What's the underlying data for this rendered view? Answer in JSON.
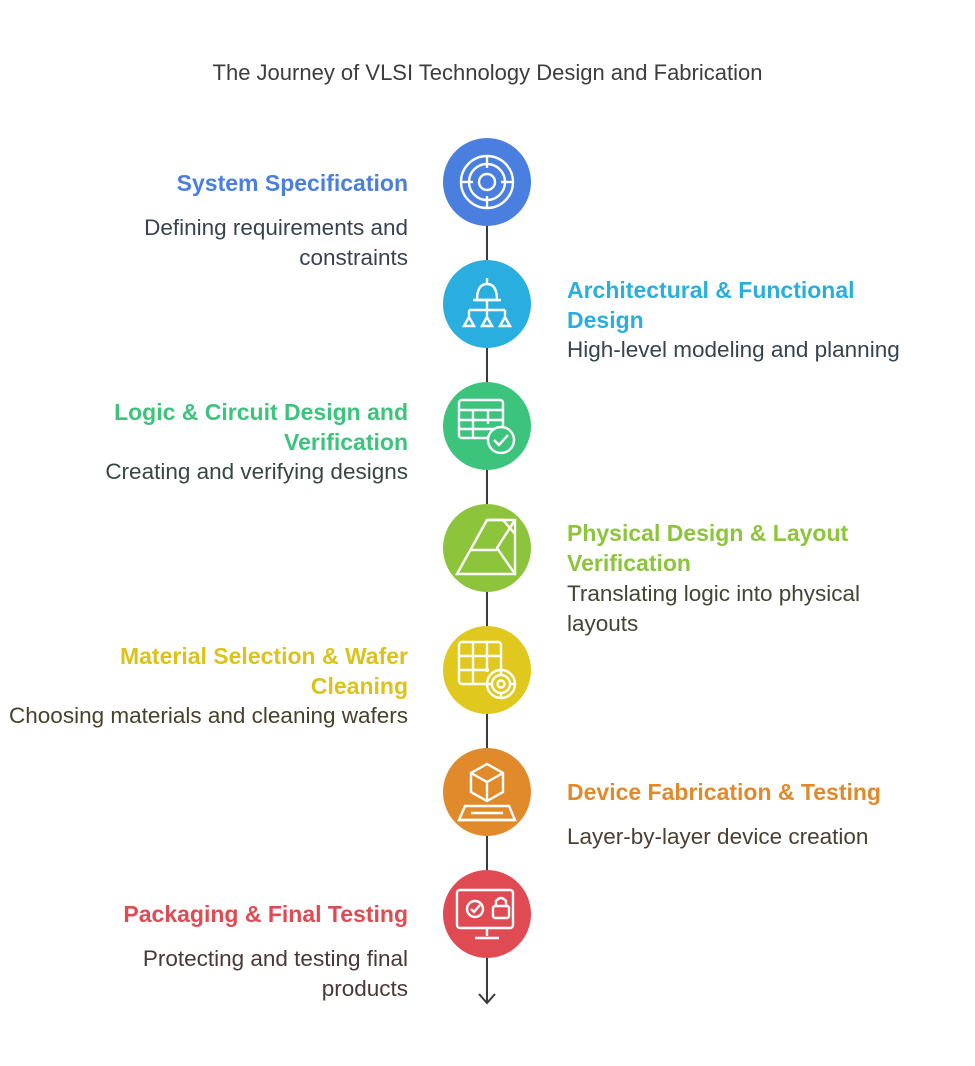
{
  "title": "The Journey of VLSI Technology Design and Fabrication",
  "steps": [
    {
      "heading": "System Specification",
      "description": "Defining requirements and constraints",
      "color": "#4a7fdf",
      "heading_color": "#4a7fdf",
      "desc_color": "#3a4150",
      "icon": "target-icon"
    },
    {
      "heading": "Architectural & Functional Design",
      "description": "High-level modeling and planning",
      "color": "#2aaee0",
      "heading_color": "#2aaee0",
      "desc_color": "#35444e",
      "icon": "hierarchy-icon"
    },
    {
      "heading": "Logic & Circuit Design and Verification",
      "description": "Creating and verifying designs",
      "color": "#3cc47d",
      "heading_color": "#3cc47d",
      "desc_color": "#37473f",
      "icon": "table-check-icon"
    },
    {
      "heading": "Physical Design & Layout Verification",
      "description": "Translating logic into physical layouts",
      "color": "#8cc43c",
      "heading_color": "#8cc43c",
      "desc_color": "#414632",
      "icon": "layout-icon"
    },
    {
      "heading": "Material Selection & Wafer Cleaning",
      "description": "Choosing materials and cleaning wafers",
      "color": "#e0c81e",
      "heading_color": "#dcc21c",
      "desc_color": "#46432c",
      "icon": "grid-gear-icon"
    },
    {
      "heading": "Device Fabrication & Testing",
      "description": "Layer-by-layer device creation",
      "color": "#e08a2c",
      "heading_color": "#e08a2c",
      "desc_color": "#4a3f32",
      "icon": "cube-platform-icon"
    },
    {
      "heading": "Packaging & Final Testing",
      "description": "Protecting and testing final products",
      "color": "#e04a52",
      "heading_color": "#e04a52",
      "desc_color": "#4a3838",
      "icon": "monitor-lock-icon"
    }
  ]
}
